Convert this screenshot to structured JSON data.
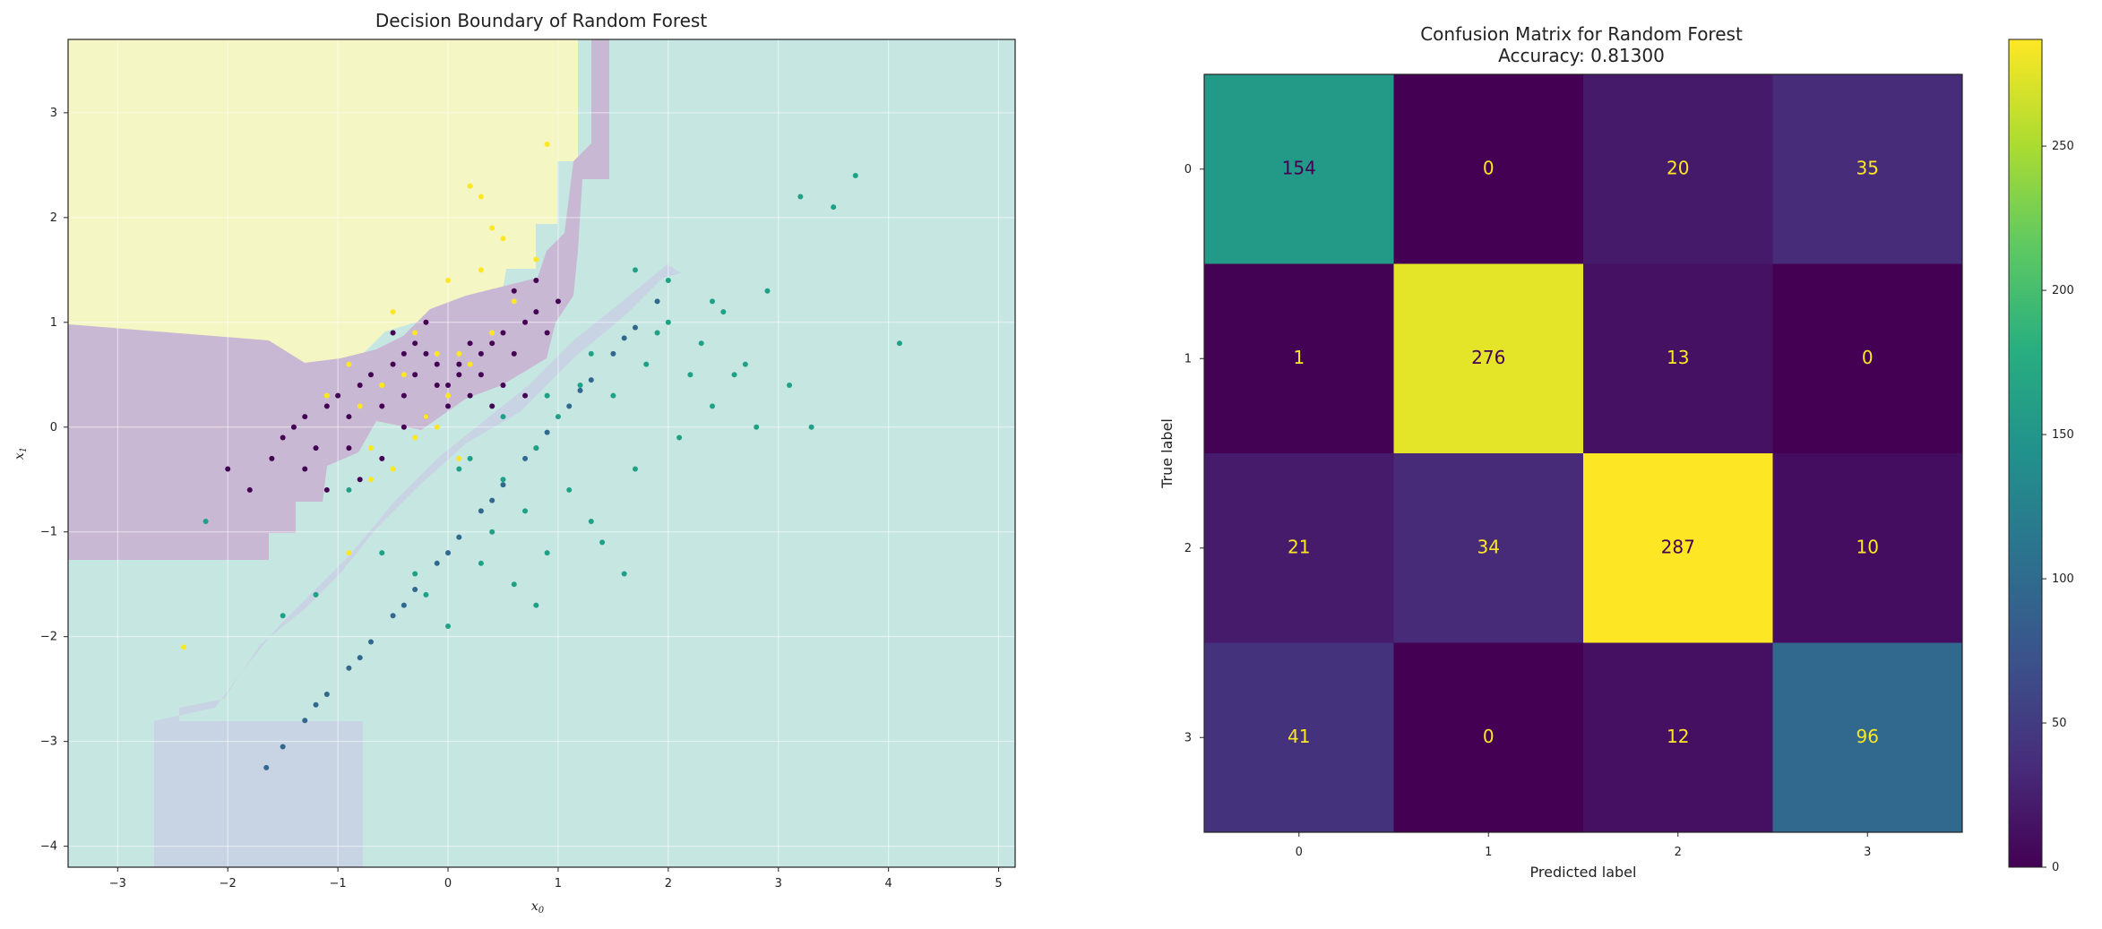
{
  "chart_data": [
    {
      "type": "scatter",
      "title": "Decision Boundary of Random Forest",
      "xlabel": "x0",
      "ylabel": "x1",
      "xlim": [
        -3.45,
        5.15
      ],
      "ylim": [
        -4.2,
        3.7
      ],
      "xticks": [
        "−3",
        "−2",
        "−1",
        "0",
        "1",
        "2",
        "3",
        "4",
        "5"
      ],
      "yticks": [
        "−4",
        "−3",
        "−2",
        "−1",
        "0",
        "1",
        "2",
        "3"
      ],
      "grid": true,
      "background_regions": {
        "class_colors": {
          "0": "#c9b8d3",
          "1": "#c8d4e3",
          "2": "#c6e6e1",
          "3": "#f4f6c3"
        }
      },
      "series": [
        {
          "class": "0",
          "color": "#440154",
          "x": [
            -1.6,
            -1.5,
            -1.4,
            -1.3,
            -1.2,
            -1.1,
            -1.0,
            -0.9,
            -0.8,
            -0.7,
            -0.6,
            -0.5,
            -0.4,
            -0.3,
            -0.2,
            -0.1,
            0.0,
            0.1,
            0.2,
            0.3,
            0.4,
            0.5,
            0.6,
            0.7,
            0.8,
            0.9,
            1.0,
            -0.8,
            -0.6,
            -0.4,
            -0.2,
            0.0,
            0.2,
            0.4,
            -1.3,
            -1.1,
            -0.9,
            -0.5,
            -0.3,
            -0.1,
            0.1,
            0.3,
            0.5,
            0.7,
            -1.8,
            -2.0,
            0.6,
            0.8,
            -0.2,
            -0.4
          ],
          "y": [
            -0.3,
            -0.1,
            0.0,
            0.1,
            -0.2,
            0.2,
            0.3,
            0.1,
            0.4,
            0.5,
            0.2,
            0.6,
            0.3,
            0.5,
            0.7,
            0.4,
            0.2,
            0.6,
            0.3,
            0.5,
            0.8,
            0.9,
            0.7,
            1.0,
            1.1,
            0.9,
            1.2,
            -0.5,
            -0.3,
            0.0,
            0.1,
            0.4,
            0.8,
            0.2,
            -0.4,
            -0.6,
            -0.2,
            0.9,
            0.8,
            0.6,
            0.5,
            0.7,
            0.4,
            0.3,
            -0.6,
            -0.4,
            1.3,
            1.4,
            1.0,
            0.7
          ]
        },
        {
          "class": "1",
          "color": "#31688e",
          "x": [
            -1.65,
            -1.5,
            -1.3,
            -1.1,
            -0.9,
            -0.7,
            -0.5,
            -0.3,
            -0.1,
            0.1,
            0.3,
            0.5,
            0.7,
            0.9,
            1.1,
            1.3,
            1.5,
            1.7,
            1.9,
            -1.2,
            -0.8,
            -0.4,
            0.0,
            0.4,
            0.8,
            1.2,
            1.6
          ],
          "y": [
            -3.25,
            -3.05,
            -2.8,
            -2.55,
            -2.3,
            -2.05,
            -1.8,
            -1.55,
            -1.3,
            -1.05,
            -0.8,
            -0.55,
            -0.3,
            -0.05,
            0.2,
            0.45,
            0.7,
            0.95,
            1.2,
            -2.65,
            -2.2,
            -1.7,
            -1.2,
            -0.7,
            -0.2,
            0.35,
            0.85
          ]
        },
        {
          "class": "2",
          "color": "#1fa187",
          "x": [
            0.2,
            0.5,
            0.8,
            1.0,
            1.2,
            1.5,
            1.8,
            2.0,
            2.3,
            2.6,
            2.9,
            3.2,
            3.5,
            3.7,
            4.1,
            0.4,
            0.7,
            1.1,
            1.4,
            1.7,
            2.1,
            2.4,
            2.8,
            3.1,
            -0.2,
            0.0,
            0.3,
            0.6,
            0.9,
            1.3,
            1.6,
            1.9,
            2.2,
            2.5,
            -1.2,
            -1.5,
            -2.2,
            -0.6,
            -0.9,
            0.1,
            0.5,
            0.9,
            1.3,
            1.7,
            2.0,
            2.4,
            2.7,
            3.3,
            -0.3,
            0.8
          ],
          "y": [
            -0.3,
            -0.5,
            -0.2,
            0.1,
            0.4,
            0.3,
            0.6,
            1.0,
            0.8,
            0.5,
            1.3,
            2.2,
            2.1,
            2.4,
            0.8,
            -1.0,
            -0.8,
            -0.6,
            -1.1,
            -0.4,
            -0.1,
            0.2,
            0.0,
            0.4,
            -1.6,
            -1.9,
            -1.3,
            -1.5,
            -1.2,
            -0.9,
            -1.4,
            0.9,
            0.5,
            1.1,
            -1.6,
            -1.8,
            -0.9,
            -1.2,
            -0.6,
            -0.4,
            0.1,
            0.3,
            0.7,
            1.5,
            1.4,
            1.2,
            0.6,
            0.0,
            -1.4,
            -1.7
          ]
        },
        {
          "class": "3",
          "color": "#fde725",
          "x": [
            -0.8,
            -0.6,
            -0.4,
            -0.2,
            0.0,
            0.2,
            0.4,
            0.6,
            -0.7,
            -0.5,
            -0.3,
            -0.1,
            0.1,
            0.3,
            -0.9,
            -1.1,
            0.2,
            0.3,
            0.5,
            0.8,
            0.9,
            -0.5,
            -0.3,
            -0.1,
            0.1,
            -0.7,
            -0.9,
            -2.4,
            0.0,
            0.4
          ],
          "y": [
            0.2,
            0.4,
            0.5,
            0.1,
            0.3,
            0.6,
            0.9,
            1.2,
            -0.2,
            -0.4,
            -0.1,
            0.0,
            0.7,
            1.5,
            0.6,
            0.3,
            2.3,
            2.2,
            1.8,
            1.6,
            2.7,
            1.1,
            0.9,
            0.7,
            -0.3,
            -0.5,
            -1.2,
            -2.1,
            1.4,
            1.9
          ]
        }
      ]
    },
    {
      "type": "heatmap",
      "title": "Confusion Matrix for Random Forest",
      "subtitle": "Accuracy: 0.81300",
      "xlabel": "Predicted label",
      "ylabel": "True label",
      "x_categories": [
        "0",
        "1",
        "2",
        "3"
      ],
      "y_categories": [
        "0",
        "1",
        "2",
        "3"
      ],
      "values": [
        [
          154,
          0,
          20,
          35
        ],
        [
          1,
          276,
          13,
          0
        ],
        [
          21,
          34,
          287,
          10
        ],
        [
          41,
          0,
          12,
          96
        ]
      ],
      "colorbar": {
        "range": [
          0,
          287
        ],
        "ticks": [
          "0",
          "50",
          "100",
          "150",
          "200",
          "250"
        ],
        "colormap": "viridis"
      }
    }
  ]
}
